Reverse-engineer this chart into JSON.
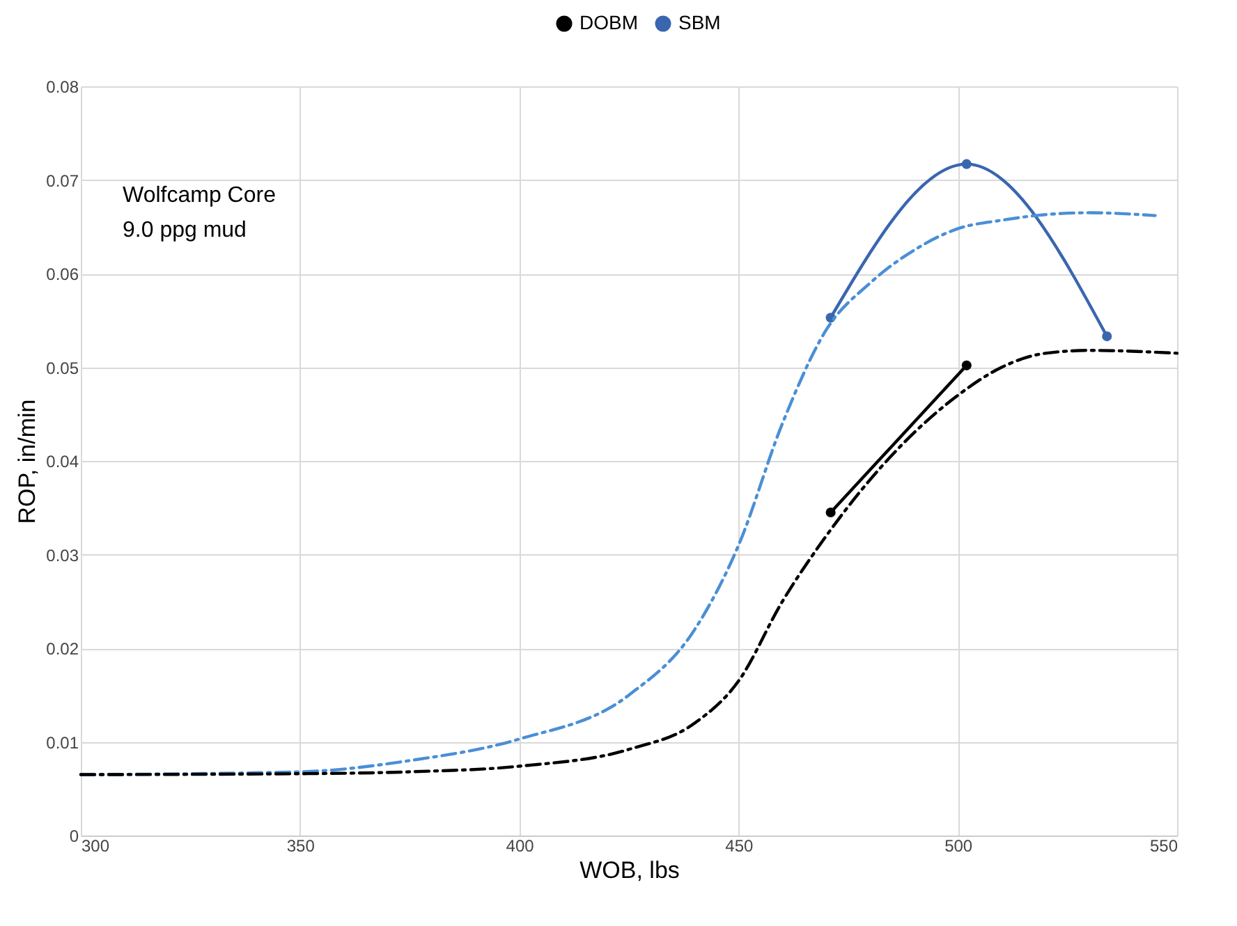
{
  "chart_data": {
    "type": "line",
    "xlabel": "WOB, lbs",
    "ylabel": "ROP, in/min",
    "annotations": [
      "Wolfcamp Core",
      "9.0 ppg mud"
    ],
    "xlim": [
      300,
      550
    ],
    "xticks": [
      300,
      350,
      400,
      450,
      500,
      550
    ],
    "ylim": [
      0,
      0.08
    ],
    "yticks": [
      0,
      0.01,
      0.02,
      0.03,
      0.04,
      0.05,
      0.06,
      0.07,
      0.08
    ],
    "grid": true,
    "legend": "top",
    "marker": "circle",
    "line_style": "solid",
    "series": [
      {
        "name": "DOBM",
        "color": "#000000",
        "x": [
          471,
          502
        ],
        "values": [
          0.0345,
          0.0502
        ]
      },
      {
        "name": "SBM",
        "color": "#3a66b0",
        "x": [
          471,
          502,
          534
        ],
        "values": [
          0.0553,
          0.0717,
          0.0533
        ]
      },
      {
        "type": "line",
        "color": "#4a8fd6",
        "marker": "none",
        "line_style": "dashed",
        "x": [
          300,
          350,
          375,
          400,
          425,
          440,
          450,
          460,
          470,
          480,
          490,
          500,
          510,
          520,
          530,
          545
        ],
        "values": [
          0.0065,
          0.0068,
          0.008,
          0.0103,
          0.015,
          0.022,
          0.031,
          0.044,
          0.054,
          0.059,
          0.0625,
          0.0648,
          0.0657,
          0.0663,
          0.0665,
          0.0662
        ]
      },
      {
        "type": "line",
        "color": "#000000",
        "marker": "none",
        "line_style": "dashed",
        "x": [
          300,
          350,
          375,
          400,
          425,
          440,
          450,
          460,
          470,
          480,
          490,
          500,
          510,
          520,
          530,
          550
        ],
        "values": [
          0.0065,
          0.0066,
          0.0068,
          0.0074,
          0.0092,
          0.012,
          0.0165,
          0.025,
          0.032,
          0.038,
          0.043,
          0.047,
          0.05,
          0.0515,
          0.0518,
          0.0515
        ]
      }
    ]
  }
}
